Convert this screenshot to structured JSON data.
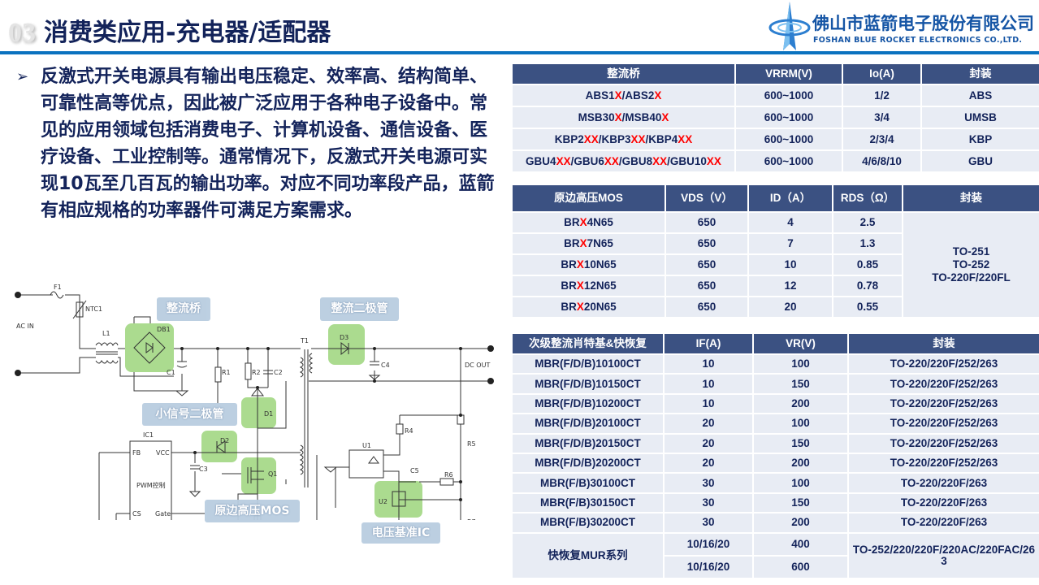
{
  "header": {
    "section_number": "03",
    "title": "消费类应用-充电器/适配器"
  },
  "logo": {
    "name_cn": "佛山市蓝箭电子股份有限公司",
    "name_en": "FOSHAN BLUE ROCKET ELECTRONICS CO.,LTD."
  },
  "intro": {
    "bullet": "➢",
    "text": "反激式开关电源具有输出电压稳定、效率高、结构简单、可靠性高等优点，因此被广泛应用于各种电子设备中。常见的应用领域包括消费电子、计算机设备、通信设备、医疗设备、工业控制等。通常情况下，反激式开关电源可实现10瓦至几百瓦的输出功率。对应不同功率段产品，蓝箭有相应规格的功率器件可满足方案需求。"
  },
  "colors": {
    "header_bg": "#3b5182",
    "row_bg": "#e8ecf4",
    "highlight": "#ff0000",
    "accent_line": "#0a72bf",
    "title": "#13235a"
  },
  "circuit": {
    "labels": {
      "bridge": "整流桥",
      "rect_diode": "整流二极管",
      "small_diode": "小信号二极管",
      "mos": "原边高压MOS",
      "ref_ic": "电压基准IC"
    },
    "parts": {
      "F1": "F1",
      "NTC1": "NTC1",
      "AC": "AC IN",
      "L1": "L1",
      "DB1": "DB1",
      "C1": "C1",
      "R1": "R1",
      "R2": "R2",
      "C2": "C2",
      "T1": "T1",
      "D3": "D3",
      "C4": "C4",
      "DC": "DC OUT",
      "D1": "D1",
      "D2": "D2",
      "IC1": "IC1",
      "FB": "FB",
      "VCC": "VCC",
      "PWM": "PWM控制",
      "CS": "CS",
      "Gate": "Gate",
      "C3": "C3",
      "Q1": "Q1",
      "U1": "U1",
      "R4": "R4",
      "R5": "R5",
      "C5": "C5",
      "R6": "R6",
      "U2": "U2",
      "R7": "R7"
    }
  },
  "bridge_table": {
    "headers": [
      "整流桥",
      "VRRM(V)",
      "Io(A)",
      "封装"
    ],
    "rows": [
      [
        "ABS1X/ABS2X",
        "600~1000",
        "1/2",
        "ABS"
      ],
      [
        "MSB30X/MSB40X",
        "600~1000",
        "3/4",
        "UMSB"
      ],
      [
        "KBP2XX/KBP3XX/KBP4XX",
        "600~1000",
        "2/3/4",
        "KBP"
      ],
      [
        "GBU4XX/GBU6XX/GBU8XX/GBU10XX",
        "600~1000",
        "4/6/8/10",
        "GBU"
      ]
    ]
  },
  "mos_table": {
    "headers": [
      "原边高压MOS",
      "VDS（V）",
      "ID（A）",
      "RDS（Ω）",
      "封装"
    ],
    "rows": [
      [
        "BRX4N65",
        "650",
        "4",
        "2.5"
      ],
      [
        "BRX7N65",
        "650",
        "7",
        "1.3"
      ],
      [
        "BRX10N65",
        "650",
        "10",
        "0.85"
      ],
      [
        "BRX12N65",
        "650",
        "12",
        "0.78"
      ],
      [
        "BRX20N65",
        "650",
        "20",
        "0.55"
      ]
    ],
    "package": [
      "TO-251",
      "TO-252",
      "TO-220F/220FL"
    ]
  },
  "diode_table": {
    "headers": [
      "次级整流肖特基&快恢复",
      "IF(A)",
      "VR(V)",
      "封装"
    ],
    "rows": [
      [
        "MBR(F/D/B)10100CT",
        "10",
        "100",
        "TO-220/220F/252/263"
      ],
      [
        "MBR(F/D/B)10150CT",
        "10",
        "150",
        "TO-220/220F/252/263"
      ],
      [
        "MBR(F/D/B)10200CT",
        "10",
        "200",
        "TO-220/220F/252/263"
      ],
      [
        "MBR(F/D/B)20100CT",
        "20",
        "100",
        "TO-220/220F/252/263"
      ],
      [
        "MBR(F/D/B)20150CT",
        "20",
        "150",
        "TO-220/220F/252/263"
      ],
      [
        "MBR(F/D/B)20200CT",
        "20",
        "200",
        "TO-220/220F/252/263"
      ],
      [
        "MBR(F/B)30100CT",
        "30",
        "100",
        "TO-220/220F/263"
      ],
      [
        "MBR(F/B)30150CT",
        "30",
        "150",
        "TO-220/220F/263"
      ],
      [
        "MBR(F/B)30200CT",
        "30",
        "200",
        "TO-220/220F/263"
      ]
    ],
    "mur": {
      "name": "快恢复MUR系列",
      "rows": [
        [
          "10/16/20",
          "400"
        ],
        [
          "10/16/20",
          "600"
        ]
      ],
      "package": "TO-252/220/220F/220AC/220FAC/263"
    }
  }
}
